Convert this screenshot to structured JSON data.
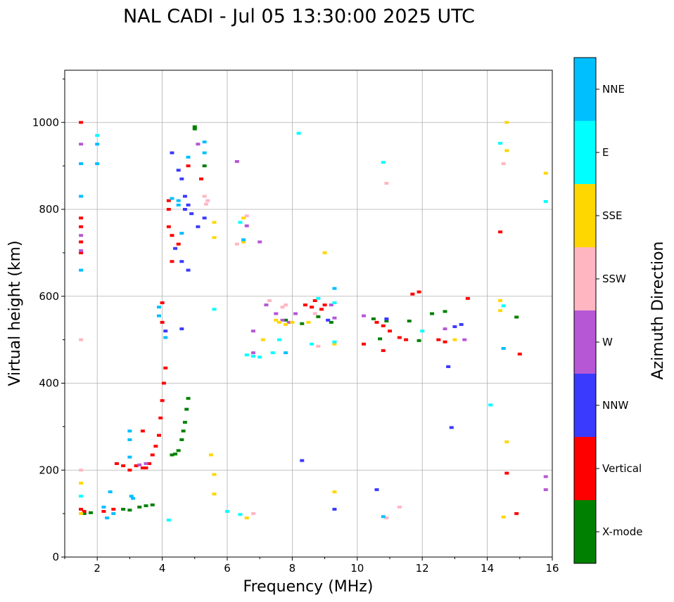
{
  "chart_data": {
    "type": "scatter",
    "title": "NAL CADI - Jul 05 13:30:00 2025 UTC",
    "xlabel": "Frequency (MHz)",
    "ylabel": "Virtual height (km)",
    "xlim": [
      1,
      16
    ],
    "ylim": [
      0,
      1120
    ],
    "xticks": [
      2,
      4,
      6,
      8,
      10,
      12,
      14,
      16
    ],
    "yticks": [
      0,
      200,
      400,
      600,
      800,
      1000
    ],
    "grid": true,
    "colorbar": {
      "title": "Azimuth Direction",
      "categories": [
        {
          "name": "X-mode",
          "color": "#008000"
        },
        {
          "name": "Vertical",
          "color": "#ff0000"
        },
        {
          "name": "NNW",
          "color": "#3a3aff"
        },
        {
          "name": "W",
          "color": "#b657d6"
        },
        {
          "name": "SSW",
          "color": "#ffb6c1"
        },
        {
          "name": "SSE",
          "color": "#ffd700"
        },
        {
          "name": "E",
          "color": "#00ffff"
        },
        {
          "name": "NNE",
          "color": "#00bfff"
        }
      ]
    },
    "series": [
      {
        "name": "X-mode",
        "points": [
          [
            4.3,
            235
          ],
          [
            4.4,
            237
          ],
          [
            4.5,
            245
          ],
          [
            4.6,
            270
          ],
          [
            4.65,
            290
          ],
          [
            4.7,
            310
          ],
          [
            4.75,
            340
          ],
          [
            4.8,
            365
          ],
          [
            3.3,
            115
          ],
          [
            3.5,
            118
          ],
          [
            3.7,
            120
          ],
          [
            2.8,
            110
          ],
          [
            3.0,
            108
          ],
          [
            1.6,
            100
          ],
          [
            1.8,
            102
          ],
          [
            7.8,
            545
          ],
          [
            8.3,
            537
          ],
          [
            8.8,
            553
          ],
          [
            9.2,
            540
          ],
          [
            10.5,
            548
          ],
          [
            10.9,
            543
          ],
          [
            11.6,
            543
          ],
          [
            11.9,
            498
          ],
          [
            12.3,
            560
          ],
          [
            12.7,
            565
          ],
          [
            14.9,
            552
          ],
          [
            5.0,
            985
          ],
          [
            5.0,
            990
          ],
          [
            5.3,
            900
          ],
          [
            10.7,
            502
          ]
        ]
      },
      {
        "name": "Vertical",
        "points": [
          [
            1.5,
            1000
          ],
          [
            1.5,
            780
          ],
          [
            1.5,
            760
          ],
          [
            1.5,
            725
          ],
          [
            1.5,
            700
          ],
          [
            1.5,
            110
          ],
          [
            1.6,
            105
          ],
          [
            2.2,
            105
          ],
          [
            2.5,
            110
          ],
          [
            2.6,
            215
          ],
          [
            2.8,
            210
          ],
          [
            3.0,
            200
          ],
          [
            3.2,
            210
          ],
          [
            3.4,
            205
          ],
          [
            3.5,
            205
          ],
          [
            3.6,
            215
          ],
          [
            3.7,
            235
          ],
          [
            3.8,
            255
          ],
          [
            3.9,
            280
          ],
          [
            3.95,
            320
          ],
          [
            4.0,
            360
          ],
          [
            4.05,
            400
          ],
          [
            4.1,
            435
          ],
          [
            3.4,
            290
          ],
          [
            4.0,
            540
          ],
          [
            4.0,
            585
          ],
          [
            4.2,
            820
          ],
          [
            4.2,
            800
          ],
          [
            4.2,
            760
          ],
          [
            4.3,
            740
          ],
          [
            4.3,
            680
          ],
          [
            4.5,
            720
          ],
          [
            4.8,
            900
          ],
          [
            5.2,
            870
          ],
          [
            8.4,
            580
          ],
          [
            8.6,
            575
          ],
          [
            8.7,
            590
          ],
          [
            8.9,
            570
          ],
          [
            9.0,
            580
          ],
          [
            10.6,
            540
          ],
          [
            10.8,
            532
          ],
          [
            11.0,
            520
          ],
          [
            11.3,
            505
          ],
          [
            11.5,
            500
          ],
          [
            11.7,
            605
          ],
          [
            11.9,
            610
          ],
          [
            12.5,
            500
          ],
          [
            12.7,
            495
          ],
          [
            13.4,
            595
          ],
          [
            14.4,
            748
          ],
          [
            14.6,
            193
          ],
          [
            15.0,
            467
          ],
          [
            14.9,
            100
          ],
          [
            10.2,
            490
          ],
          [
            10.8,
            475
          ]
        ]
      },
      {
        "name": "NNW",
        "points": [
          [
            4.3,
            930
          ],
          [
            4.5,
            890
          ],
          [
            4.6,
            870
          ],
          [
            4.7,
            830
          ],
          [
            4.7,
            800
          ],
          [
            4.8,
            810
          ],
          [
            4.9,
            790
          ],
          [
            5.1,
            760
          ],
          [
            5.3,
            780
          ],
          [
            4.8,
            660
          ],
          [
            4.6,
            680
          ],
          [
            4.4,
            710
          ],
          [
            4.6,
            525
          ],
          [
            4.1,
            520
          ],
          [
            9.1,
            545
          ],
          [
            10.9,
            548
          ],
          [
            13.0,
            530
          ],
          [
            13.2,
            535
          ],
          [
            12.8,
            438
          ],
          [
            12.9,
            298
          ],
          [
            8.3,
            222
          ],
          [
            9.3,
            110
          ],
          [
            10.6,
            155
          ]
        ]
      },
      {
        "name": "W",
        "points": [
          [
            1.5,
            950
          ],
          [
            1.5,
            740
          ],
          [
            1.5,
            705
          ],
          [
            3.3,
            212
          ],
          [
            3.5,
            215
          ],
          [
            6.3,
            910
          ],
          [
            6.6,
            762
          ],
          [
            7.0,
            725
          ],
          [
            7.5,
            560
          ],
          [
            7.7,
            545
          ],
          [
            7.9,
            540
          ],
          [
            8.1,
            560
          ],
          [
            9.2,
            580
          ],
          [
            9.3,
            550
          ],
          [
            12.7,
            525
          ],
          [
            13.3,
            500
          ],
          [
            15.8,
            185
          ],
          [
            15.8,
            155
          ],
          [
            6.8,
            520
          ],
          [
            7.2,
            580
          ],
          [
            5.1,
            950
          ],
          [
            6.8,
            470
          ],
          [
            10.2,
            555
          ]
        ]
      },
      {
        "name": "SSW",
        "points": [
          [
            1.5,
            500
          ],
          [
            1.5,
            200
          ],
          [
            5.3,
            830
          ],
          [
            5.35,
            812
          ],
          [
            6.3,
            720
          ],
          [
            6.6,
            785
          ],
          [
            7.7,
            575
          ],
          [
            7.8,
            580
          ],
          [
            8.7,
            560
          ],
          [
            10.9,
            860
          ],
          [
            14.5,
            905
          ],
          [
            11.3,
            115
          ],
          [
            10.9,
            90
          ],
          [
            6.8,
            100
          ],
          [
            8.8,
            485
          ],
          [
            5.4,
            820
          ],
          [
            7.3,
            590
          ]
        ]
      },
      {
        "name": "SSE",
        "points": [
          [
            1.5,
            100
          ],
          [
            1.5,
            170
          ],
          [
            5.6,
            770
          ],
          [
            5.6,
            735
          ],
          [
            6.5,
            780
          ],
          [
            7.1,
            500
          ],
          [
            7.5,
            545
          ],
          [
            7.6,
            540
          ],
          [
            7.8,
            535
          ],
          [
            8.0,
            540
          ],
          [
            9.0,
            700
          ],
          [
            9.3,
            490
          ],
          [
            14.4,
            590
          ],
          [
            14.6,
            1000
          ],
          [
            14.6,
            935
          ],
          [
            14.4,
            567
          ],
          [
            14.5,
            480
          ],
          [
            15.8,
            883
          ],
          [
            14.6,
            265
          ],
          [
            14.5,
            92
          ],
          [
            5.5,
            235
          ],
          [
            5.6,
            190
          ],
          [
            5.6,
            145
          ],
          [
            6.5,
            725
          ],
          [
            8.5,
            540
          ],
          [
            9.3,
            150
          ],
          [
            6.6,
            90
          ],
          [
            13.0,
            500
          ]
        ]
      },
      {
        "name": "E",
        "points": [
          [
            1.5,
            140
          ],
          [
            2.0,
            970
          ],
          [
            4.2,
            85
          ],
          [
            6.6,
            465
          ],
          [
            6.8,
            462
          ],
          [
            7.0,
            460
          ],
          [
            7.4,
            470
          ],
          [
            7.6,
            500
          ],
          [
            8.6,
            490
          ],
          [
            9.3,
            495
          ],
          [
            8.8,
            595
          ],
          [
            9.3,
            585
          ],
          [
            10.8,
            908
          ],
          [
            14.4,
            952
          ],
          [
            14.5,
            578
          ],
          [
            15.8,
            818
          ],
          [
            14.1,
            350
          ],
          [
            6.0,
            105
          ],
          [
            6.4,
            98
          ],
          [
            5.6,
            570
          ],
          [
            6.4,
            770
          ],
          [
            8.2,
            975
          ],
          [
            12.0,
            520
          ]
        ]
      },
      {
        "name": "NNE",
        "points": [
          [
            1.5,
            660
          ],
          [
            2.0,
            950
          ],
          [
            1.5,
            905
          ],
          [
            2.0,
            905
          ],
          [
            1.5,
            830
          ],
          [
            2.3,
            90
          ],
          [
            2.5,
            100
          ],
          [
            2.4,
            150
          ],
          [
            3.0,
            290
          ],
          [
            3.0,
            270
          ],
          [
            3.0,
            230
          ],
          [
            3.05,
            140
          ],
          [
            3.1,
            135
          ],
          [
            3.9,
            575
          ],
          [
            3.9,
            555
          ],
          [
            4.1,
            505
          ],
          [
            4.3,
            825
          ],
          [
            4.5,
            810
          ],
          [
            4.5,
            820
          ],
          [
            4.6,
            745
          ],
          [
            5.3,
            955
          ],
          [
            5.3,
            930
          ],
          [
            6.5,
            730
          ],
          [
            7.8,
            470
          ],
          [
            9.3,
            618
          ],
          [
            14.5,
            480
          ],
          [
            4.8,
            920
          ],
          [
            10.8,
            93
          ],
          [
            2.2,
            115
          ]
        ]
      }
    ]
  }
}
